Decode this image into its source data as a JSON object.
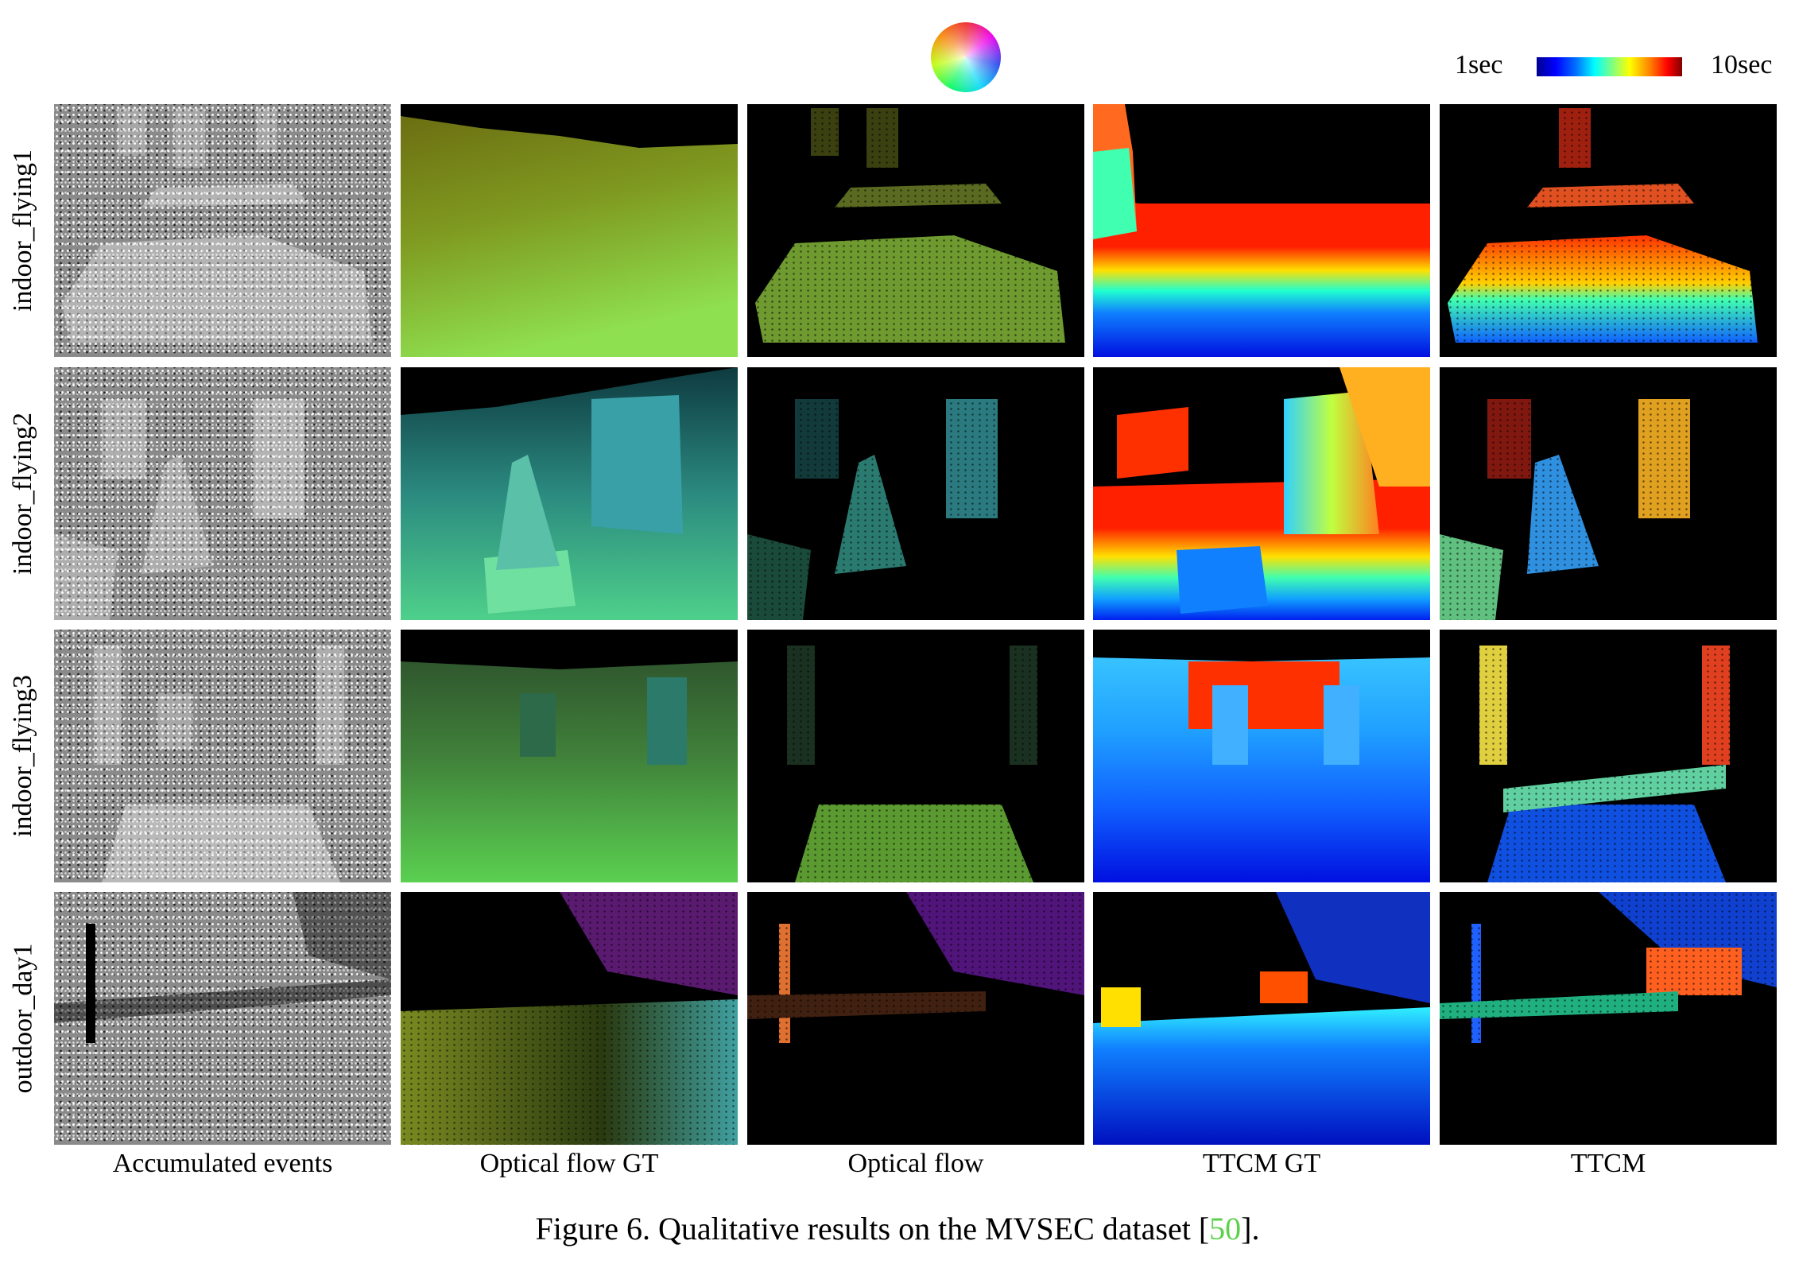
{
  "legend": {
    "flow_wheel_icon": "optical-flow-color-wheel",
    "colorbar_min": "1sec",
    "colorbar_max": "10sec",
    "colorbar_colormap": "jet"
  },
  "rows": [
    {
      "label": "indoor_flying1"
    },
    {
      "label": "indoor_flying2"
    },
    {
      "label": "indoor_flying3"
    },
    {
      "label": "outdoor_day1"
    }
  ],
  "columns": [
    {
      "label": "Accumulated events"
    },
    {
      "label": "Optical flow GT"
    },
    {
      "label": "Optical flow"
    },
    {
      "label": "TTCM GT"
    },
    {
      "label": "TTCM"
    }
  ],
  "caption": {
    "prefix": "Figure 6. Qualitative results on the MVSEC dataset [",
    "ref": "50",
    "suffix": "]."
  },
  "colors": {
    "citation_link": "#5ad14a"
  }
}
